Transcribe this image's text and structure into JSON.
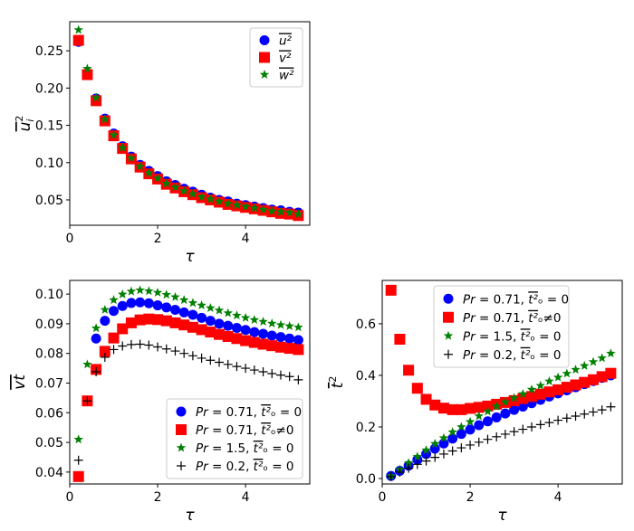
{
  "chart_data": [
    {
      "type": "scatter",
      "xlabel": "τ",
      "ylabel": {
        "over": "u",
        "sub": "i",
        "sup": "2"
      },
      "xlim": [
        0,
        5.46
      ],
      "ylim": [
        0.016,
        0.289
      ],
      "xticks": [
        0,
        2,
        4
      ],
      "xtick_labels": [
        "0",
        "2",
        "4"
      ],
      "yticks": [
        0.05,
        0.1,
        0.15,
        0.2,
        0.25
      ],
      "ytick_labels": [
        "0.05",
        "0.10",
        "0.15",
        "0.20",
        "0.25"
      ],
      "legend_position": "top-right",
      "x": [
        0.2,
        0.4,
        0.6,
        0.8,
        1.0,
        1.2,
        1.4,
        1.6,
        1.8,
        2.0,
        2.2,
        2.4,
        2.6,
        2.8,
        3.0,
        3.2,
        3.4,
        3.6,
        3.8,
        4.0,
        4.2,
        4.4,
        4.6,
        4.8,
        5.0,
        5.2
      ],
      "series": [
        {
          "name": "u²",
          "label": {
            "pre": "",
            "over": "u²",
            "post": ""
          },
          "marker": "circle",
          "color": "#0000ff",
          "values": [
            0.262,
            0.218,
            0.186,
            0.159,
            0.139,
            0.122,
            0.108,
            0.097,
            0.089,
            0.082,
            0.075,
            0.07,
            0.065,
            0.061,
            0.057,
            0.053,
            0.05,
            0.048,
            0.045,
            0.043,
            0.041,
            0.039,
            0.037,
            0.036,
            0.034,
            0.033
          ]
        },
        {
          "name": "v²",
          "label": {
            "pre": "",
            "over": "v²",
            "post": ""
          },
          "marker": "square",
          "color": "#ff0000",
          "values": [
            0.264,
            0.218,
            0.183,
            0.156,
            0.136,
            0.119,
            0.105,
            0.094,
            0.085,
            0.078,
            0.071,
            0.066,
            0.061,
            0.057,
            0.053,
            0.05,
            0.047,
            0.044,
            0.042,
            0.04,
            0.038,
            0.036,
            0.034,
            0.032,
            0.031,
            0.029
          ]
        },
        {
          "name": "w²",
          "label": {
            "pre": "",
            "over": "w²",
            "post": ""
          },
          "marker": "star",
          "color": "#008000",
          "values": [
            0.278,
            0.226,
            0.187,
            0.158,
            0.137,
            0.12,
            0.106,
            0.095,
            0.086,
            0.079,
            0.072,
            0.067,
            0.062,
            0.058,
            0.054,
            0.051,
            0.048,
            0.045,
            0.043,
            0.041,
            0.039,
            0.037,
            0.035,
            0.034,
            0.033,
            0.031
          ]
        }
      ]
    },
    {
      "type": "scatter",
      "xlabel": "τ",
      "ylabel": {
        "over": "vt",
        "sub": "",
        "sup": ""
      },
      "xlim": [
        0,
        5.46
      ],
      "ylim": [
        0.036,
        0.1046
      ],
      "xticks": [
        0,
        2,
        4
      ],
      "xtick_labels": [
        "0",
        "2",
        "4"
      ],
      "yticks": [
        0.04,
        0.05,
        0.06,
        0.07,
        0.08,
        0.09,
        0.1
      ],
      "ytick_labels": [
        "0.04",
        "0.05",
        "0.06",
        "0.07",
        "0.08",
        "0.09",
        "0.10"
      ],
      "legend_position": "lower-right",
      "x": [
        0.2,
        0.4,
        0.6,
        0.8,
        1.0,
        1.2,
        1.4,
        1.6,
        1.8,
        2.0,
        2.2,
        2.4,
        2.6,
        2.8,
        3.0,
        3.2,
        3.4,
        3.6,
        3.8,
        4.0,
        4.2,
        4.4,
        4.6,
        4.8,
        5.0,
        5.2
      ],
      "series": [
        {
          "name": "Pr = 0.71, t²ₒ = 0",
          "label": {
            "pre": "Pr = 0.71, ",
            "over": "t²",
            "post": "ₒ = 0"
          },
          "marker": "circle",
          "color": "#0000ff",
          "values": [
            0.0385,
            0.064,
            0.085,
            0.091,
            0.0943,
            0.096,
            0.097,
            0.0972,
            0.0969,
            0.0962,
            0.0955,
            0.0947,
            0.0938,
            0.093,
            0.092,
            0.091,
            0.09,
            0.0893,
            0.0886,
            0.0879,
            0.0872,
            0.0866,
            0.086,
            0.0855,
            0.085,
            0.0845
          ]
        },
        {
          "name": "Pr = 0.71, t²ₒ ≠ 0",
          "label": {
            "pre": "Pr = 0.71, ",
            "over": "t²",
            "post": "ₒ≠0"
          },
          "marker": "square",
          "color": "#ff0000",
          "values": [
            0.0385,
            0.064,
            0.0746,
            0.0807,
            0.0852,
            0.0883,
            0.0903,
            0.0913,
            0.0916,
            0.0914,
            0.091,
            0.0903,
            0.0896,
            0.0888,
            0.088,
            0.0872,
            0.0864,
            0.0857,
            0.085,
            0.0843,
            0.0837,
            0.0831,
            0.0826,
            0.0821,
            0.0817,
            0.0813
          ]
        },
        {
          "name": "Pr = 1.5, t²ₒ = 0",
          "label": {
            "pre": "Pr = 1.5, ",
            "over": "t²",
            "post": "ₒ = 0"
          },
          "marker": "star",
          "color": "#008000",
          "values": [
            0.051,
            0.0763,
            0.0885,
            0.0947,
            0.098,
            0.0999,
            0.1009,
            0.1013,
            0.101,
            0.1005,
            0.0998,
            0.099,
            0.098,
            0.097,
            0.0962,
            0.0953,
            0.0945,
            0.0936,
            0.0928,
            0.092,
            0.0913,
            0.0907,
            0.0901,
            0.0896,
            0.0892,
            0.0888
          ]
        },
        {
          "name": "Pr = 0.2, t²ₒ = 0",
          "label": {
            "pre": "Pr = 0.2, ",
            "over": "t²",
            "post": "ₒ = 0"
          },
          "marker": "plus",
          "color": "#000000",
          "values": [
            0.044,
            0.064,
            0.0738,
            0.0787,
            0.0813,
            0.0825,
            0.083,
            0.0831,
            0.0828,
            0.0822,
            0.0815,
            0.0808,
            0.08,
            0.0792,
            0.0784,
            0.0777,
            0.077,
            0.0763,
            0.0756,
            0.075,
            0.0744,
            0.0738,
            0.0732,
            0.0727,
            0.0722,
            0.0711
          ]
        }
      ]
    },
    {
      "type": "scatter",
      "xlabel": "τ",
      "ylabel": {
        "over": "t",
        "sub": "",
        "sup": "2"
      },
      "xlim": [
        0,
        5.46
      ],
      "ylim": [
        -0.021,
        0.768
      ],
      "xticks": [
        0,
        2,
        4
      ],
      "xtick_labels": [
        "0",
        "2",
        "4"
      ],
      "yticks": [
        0.0,
        0.2,
        0.4,
        0.6
      ],
      "ytick_labels": [
        "0.0",
        "0.2",
        "0.4",
        "0.6"
      ],
      "legend_position": "upper-center",
      "x": [
        0.2,
        0.4,
        0.6,
        0.8,
        1.0,
        1.2,
        1.4,
        1.6,
        1.8,
        2.0,
        2.2,
        2.4,
        2.6,
        2.8,
        3.0,
        3.2,
        3.4,
        3.6,
        3.8,
        4.0,
        4.2,
        4.4,
        4.6,
        4.8,
        5.0,
        5.2
      ],
      "series": [
        {
          "name": "Pr = 0.71, t²ₒ = 0",
          "label": {
            "pre": "Pr = 0.71, ",
            "over": "t²",
            "post": "ₒ = 0"
          },
          "marker": "circle",
          "color": "#0000ff",
          "values": [
            0.01,
            0.03,
            0.05,
            0.073,
            0.095,
            0.116,
            0.136,
            0.155,
            0.173,
            0.19,
            0.207,
            0.222,
            0.237,
            0.252,
            0.266,
            0.279,
            0.292,
            0.305,
            0.318,
            0.33,
            0.342,
            0.354,
            0.366,
            0.378,
            0.39,
            0.4
          ]
        },
        {
          "name": "Pr = 0.71, t²ₒ ≠ 0",
          "label": {
            "pre": "Pr = 0.71, ",
            "over": "t²",
            "post": "ₒ≠0"
          },
          "marker": "square",
          "color": "#ff0000",
          "values": [
            0.73,
            0.54,
            0.42,
            0.35,
            0.307,
            0.285,
            0.273,
            0.267,
            0.267,
            0.272,
            0.276,
            0.281,
            0.288,
            0.295,
            0.302,
            0.31,
            0.318,
            0.327,
            0.336,
            0.344,
            0.354,
            0.363,
            0.373,
            0.383,
            0.395,
            0.408
          ]
        },
        {
          "name": "Pr = 1.5, t²ₒ = 0",
          "label": {
            "pre": "Pr = 1.5, ",
            "over": "t²",
            "post": "ₒ = 0"
          },
          "marker": "star",
          "color": "#008000",
          "values": [
            0.01,
            0.035,
            0.06,
            0.085,
            0.11,
            0.135,
            0.157,
            0.18,
            0.2,
            0.22,
            0.242,
            0.26,
            0.28,
            0.297,
            0.312,
            0.328,
            0.345,
            0.36,
            0.377,
            0.392,
            0.407,
            0.422,
            0.437,
            0.452,
            0.467,
            0.485
          ]
        },
        {
          "name": "Pr = 0.2, t²ₒ = 0",
          "label": {
            "pre": "Pr = 0.2, ",
            "over": "t²",
            "post": "ₒ = 0"
          },
          "marker": "plus",
          "color": "#000000",
          "values": [
            0.008,
            0.025,
            0.04,
            0.055,
            0.068,
            0.082,
            0.095,
            0.107,
            0.119,
            0.13,
            0.141,
            0.152,
            0.162,
            0.172,
            0.182,
            0.191,
            0.2,
            0.209,
            0.217,
            0.226,
            0.234,
            0.242,
            0.25,
            0.258,
            0.266,
            0.278
          ]
        }
      ]
    }
  ]
}
